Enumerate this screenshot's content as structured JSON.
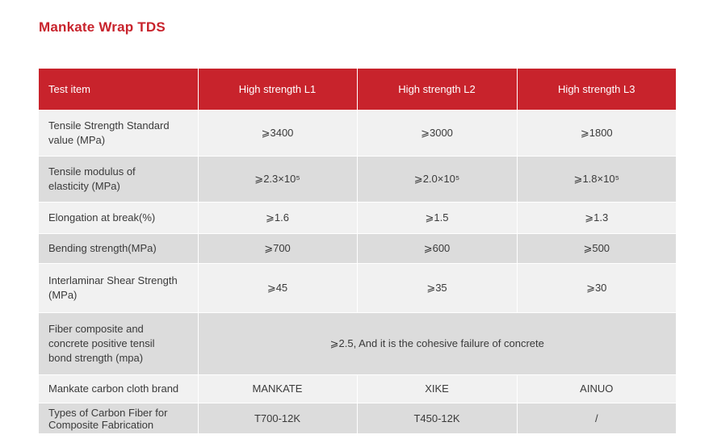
{
  "title": "Mankate Wrap TDS",
  "header": [
    "Test item",
    "High strength L1",
    "High strength L2",
    "High strength L3"
  ],
  "rows": [
    {
      "label": [
        "Tensile Strength Standard",
        "value (MPa)"
      ],
      "values": [
        "⩾3400",
        "⩾3000",
        "⩾1800"
      ]
    },
    {
      "label": [
        "Tensile modulus of",
        "elasticity (MPa)"
      ],
      "values": [
        "⩾2.3×10⁵",
        "⩾2.0×10⁵",
        "⩾1.8×10⁵"
      ]
    },
    {
      "label": [
        "Elongation at break(%)"
      ],
      "values": [
        "⩾1.6",
        "⩾1.5",
        "⩾1.3"
      ]
    },
    {
      "label": [
        "Bending strength(MPa)"
      ],
      "values": [
        "⩾700",
        "⩾600",
        "⩾500"
      ]
    },
    {
      "label": [
        "Interlaminar Shear Strength",
        "(MPa)"
      ],
      "values": [
        "⩾45",
        "⩾35",
        "⩾30"
      ]
    },
    {
      "label": [
        "Fiber composite and",
        "concrete positive tensil",
        "bond strength  (mpa)"
      ],
      "merged": "⩾2.5, And it is the cohesive failure of concrete"
    },
    {
      "label": [
        "Mankate carbon cloth brand"
      ],
      "values": [
        "MANKATE",
        "XIKE",
        "AINUO"
      ]
    },
    {
      "label": [
        "Types of Carbon Fiber for",
        "Composite Fabrication"
      ],
      "values": [
        "T700-12K",
        "T450-12K",
        "/"
      ]
    }
  ],
  "colors": {
    "accent": "#c8232c",
    "row_light": "#f1f1f1",
    "row_dark": "#dcdcdc"
  }
}
